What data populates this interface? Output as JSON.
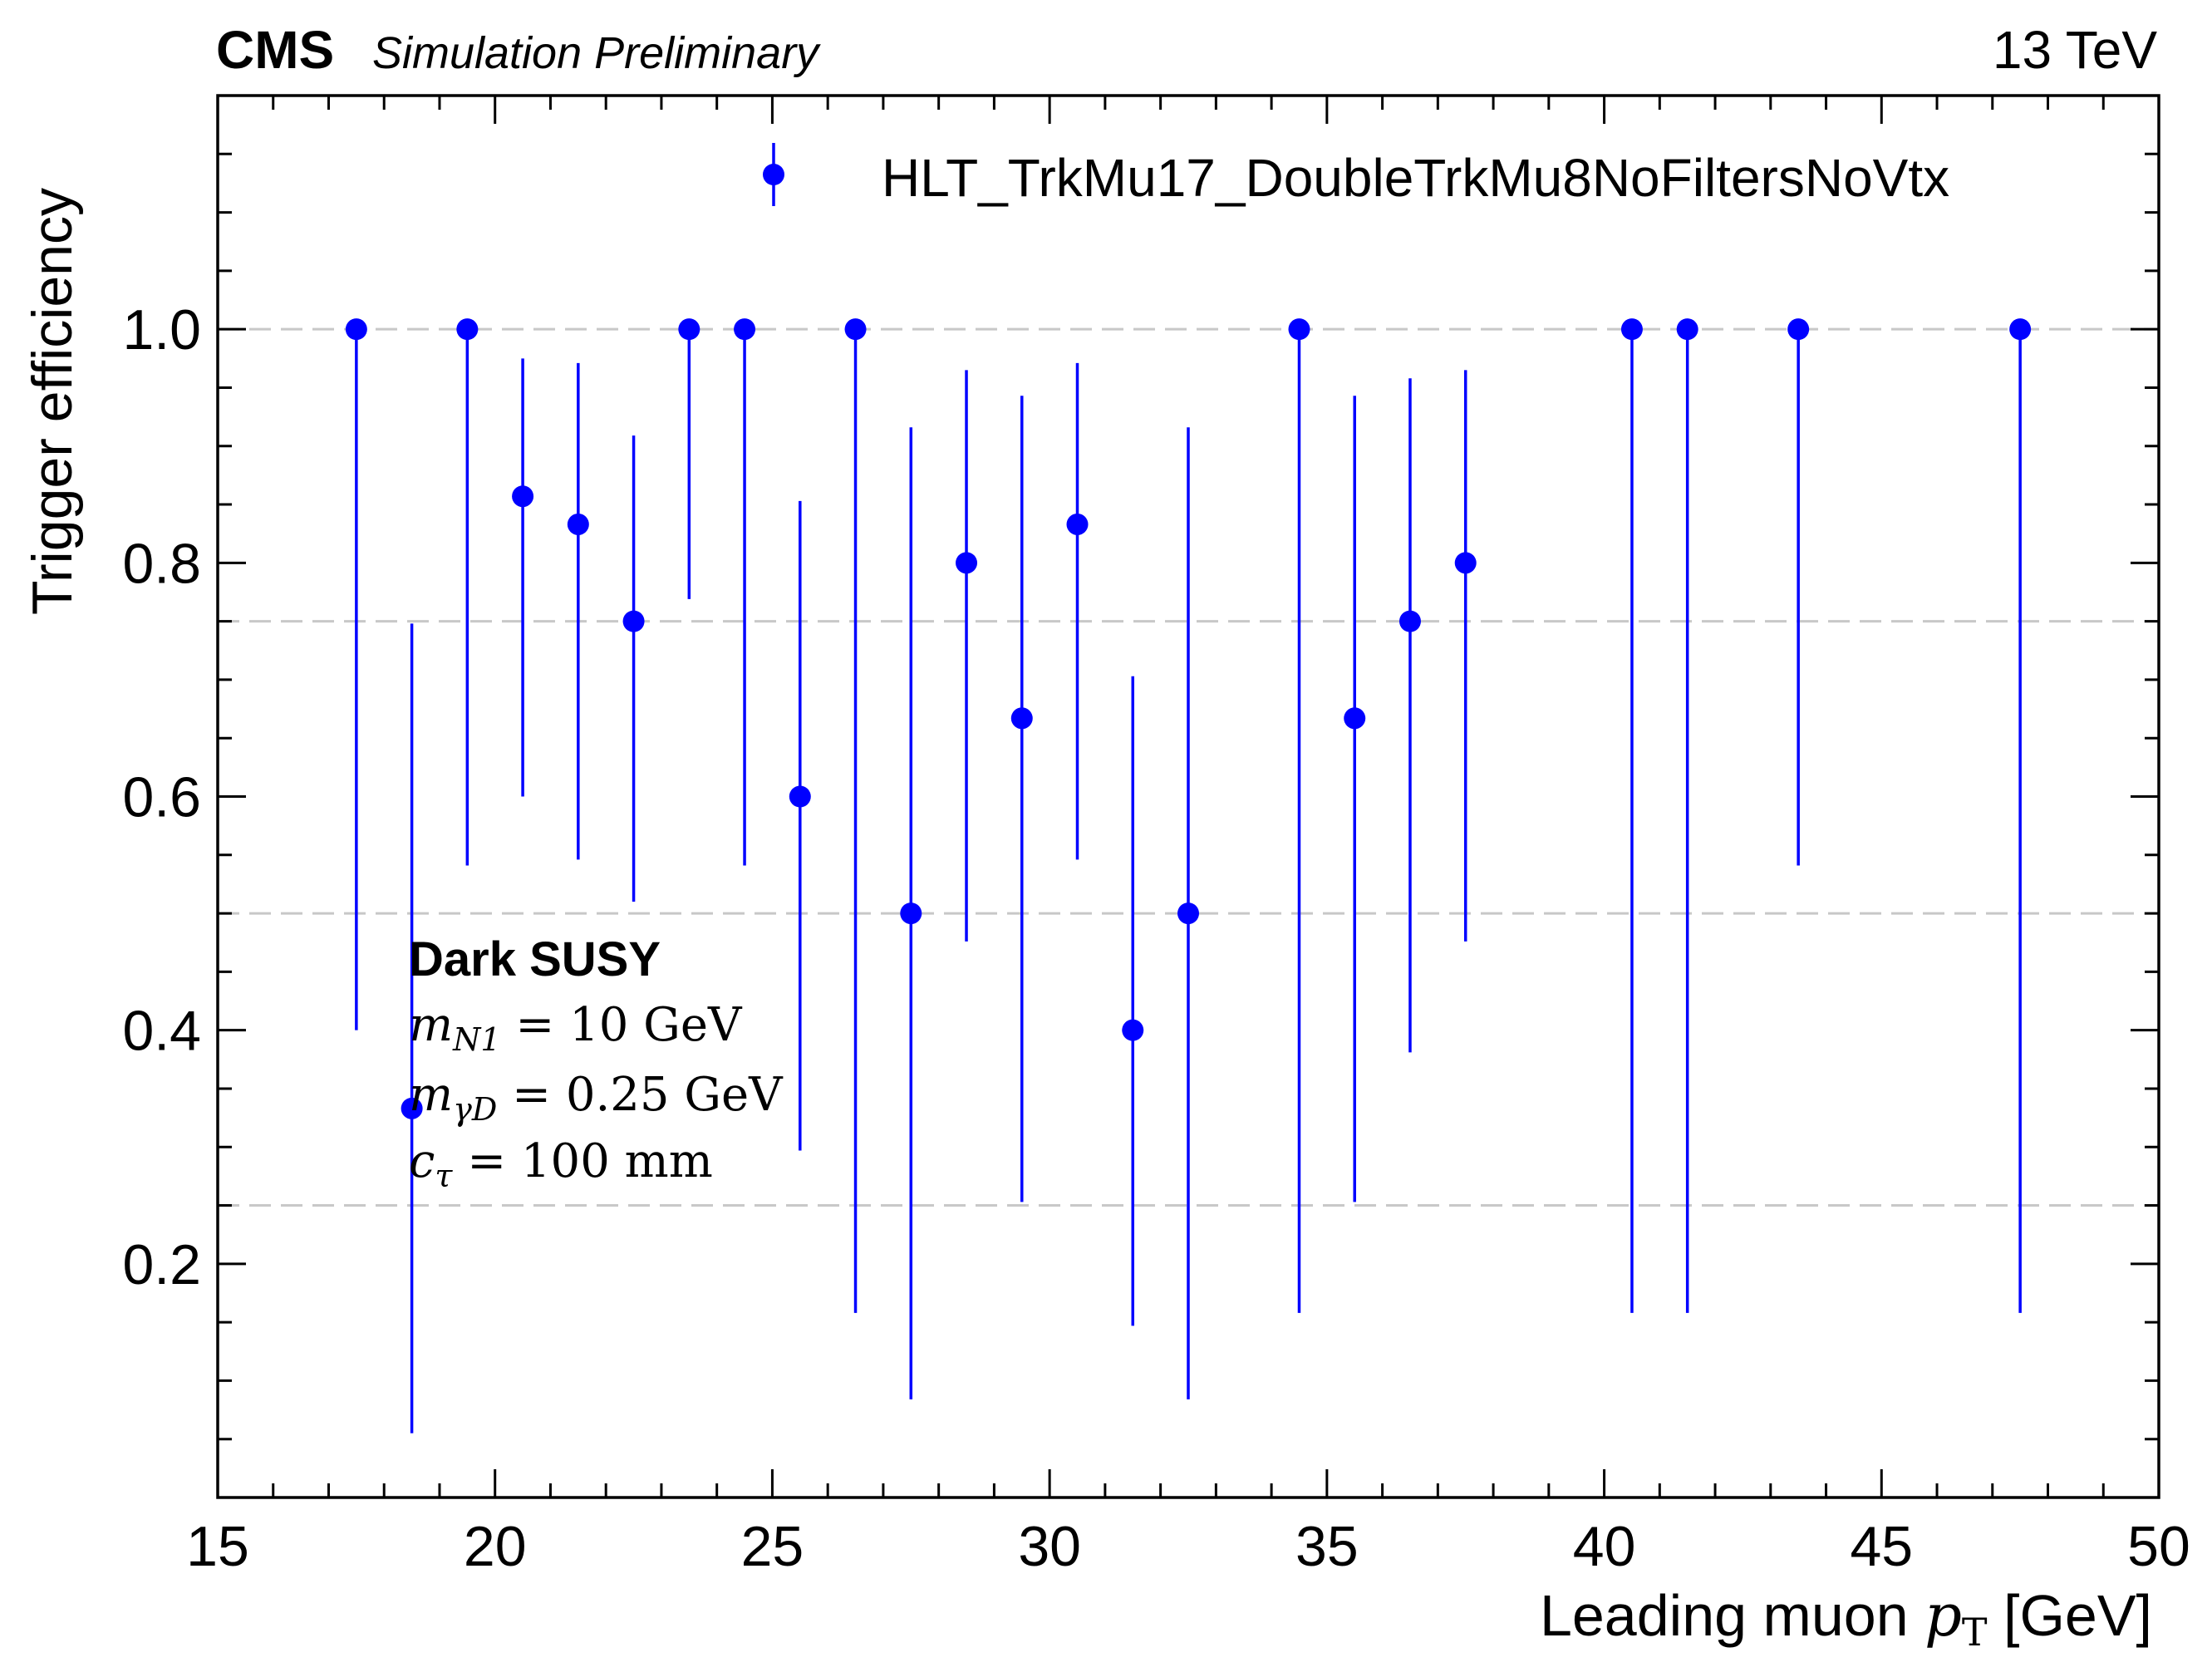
{
  "chart_data": {
    "type": "scatter",
    "experiment": "CMS",
    "status": "Simulation Preliminary",
    "energy": "13 TeV",
    "xlabel": {
      "text": "Leading muon ",
      "var": "p",
      "sub": "T",
      "unit": " [GeV]"
    },
    "ylabel": "Trigger efficiency",
    "xlim": [
      15,
      50
    ],
    "ylim": [
      0,
      1.2
    ],
    "xticks": [
      15,
      20,
      25,
      30,
      35,
      40,
      45,
      50
    ],
    "xtick_labels": [
      "15",
      "20",
      "25",
      "30",
      "35",
      "40",
      "45",
      "50"
    ],
    "yticks": [
      0.2,
      0.4,
      0.6,
      0.8,
      1.0
    ],
    "ytick_labels": [
      "0.2",
      "0.4",
      "0.6",
      "0.8",
      "1.0"
    ],
    "grid": {
      "axis": "y",
      "values": [
        0.25,
        0.5,
        0.75,
        1.0
      ],
      "style": "dashed"
    },
    "legend": {
      "position": "top-right",
      "label": "HLT_TrkMu17_DoubleTrkMu8NoFiltersNoVtx"
    },
    "series": [
      {
        "name": "HLT_TrkMu17_DoubleTrkMu8NoFiltersNoVtx",
        "color": "#0000ff",
        "points": [
          {
            "x": 17.5,
            "y": 1.0,
            "lo": 0.4,
            "hi": 1.0
          },
          {
            "x": 18.5,
            "y": 0.333,
            "lo": 0.055,
            "hi": 0.748
          },
          {
            "x": 19.5,
            "y": 1.0,
            "lo": 0.541,
            "hi": 1.0
          },
          {
            "x": 20.5,
            "y": 0.857,
            "lo": 0.6,
            "hi": 0.975
          },
          {
            "x": 21.5,
            "y": 0.833,
            "lo": 0.546,
            "hi": 0.971
          },
          {
            "x": 22.5,
            "y": 0.75,
            "lo": 0.51,
            "hi": 0.909
          },
          {
            "x": 23.5,
            "y": 1.0,
            "lo": 0.769,
            "hi": 1.0
          },
          {
            "x": 24.5,
            "y": 1.0,
            "lo": 0.541,
            "hi": 1.0
          },
          {
            "x": 25.5,
            "y": 0.6,
            "lo": 0.297,
            "hi": 0.853
          },
          {
            "x": 26.5,
            "y": 1.0,
            "lo": 0.158,
            "hi": 1.0
          },
          {
            "x": 27.5,
            "y": 0.5,
            "lo": 0.084,
            "hi": 0.916
          },
          {
            "x": 28.5,
            "y": 0.8,
            "lo": 0.476,
            "hi": 0.965
          },
          {
            "x": 29.5,
            "y": 0.667,
            "lo": 0.253,
            "hi": 0.943
          },
          {
            "x": 30.5,
            "y": 0.833,
            "lo": 0.546,
            "hi": 0.971
          },
          {
            "x": 31.5,
            "y": 0.4,
            "lo": 0.147,
            "hi": 0.703
          },
          {
            "x": 32.5,
            "y": 0.5,
            "lo": 0.084,
            "hi": 0.916
          },
          {
            "x": 34.5,
            "y": 1.0,
            "lo": 0.158,
            "hi": 1.0
          },
          {
            "x": 35.5,
            "y": 0.667,
            "lo": 0.253,
            "hi": 0.943
          },
          {
            "x": 36.5,
            "y": 0.75,
            "lo": 0.381,
            "hi": 0.958
          },
          {
            "x": 37.5,
            "y": 0.8,
            "lo": 0.476,
            "hi": 0.965
          },
          {
            "x": 40.5,
            "y": 1.0,
            "lo": 0.158,
            "hi": 1.0
          },
          {
            "x": 41.5,
            "y": 1.0,
            "lo": 0.158,
            "hi": 1.0
          },
          {
            "x": 43.5,
            "y": 1.0,
            "lo": 0.541,
            "hi": 1.0
          },
          {
            "x": 47.5,
            "y": 1.0,
            "lo": 0.158,
            "hi": 1.0
          }
        ]
      }
    ],
    "annotation": {
      "title": "Dark SUSY",
      "lines": [
        {
          "var": "m",
          "sub": "N1",
          "rest": " = 10 GeV"
        },
        {
          "var": "m",
          "sub": "γD",
          "rest": " = 0.25 GeV"
        },
        {
          "var": "c",
          "sub": "τ",
          "rest": " = 100 mm"
        }
      ]
    }
  }
}
